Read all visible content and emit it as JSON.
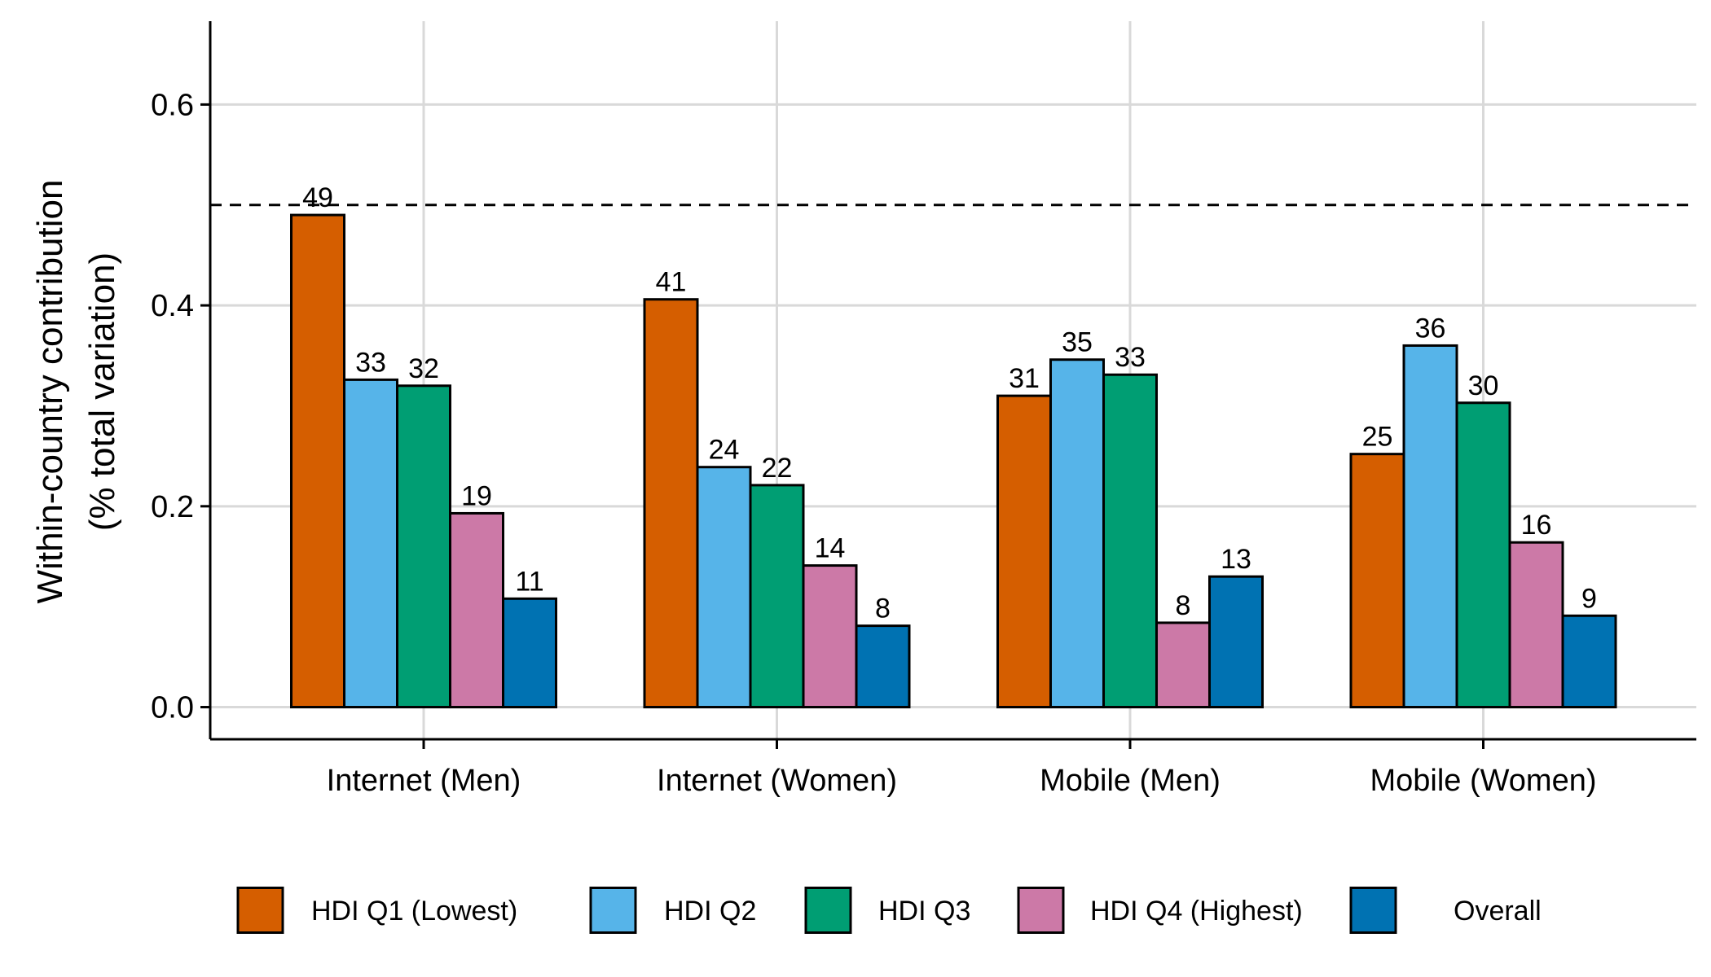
{
  "chart_data": {
    "type": "bar",
    "categories": [
      "Internet (Men)",
      "Internet (Women)",
      "Mobile (Men)",
      "Mobile (Women)"
    ],
    "series": [
      {
        "name": "HDI Q1 (Lowest)",
        "color": "#D55E00",
        "values": [
          0.49,
          0.406,
          0.31,
          0.252
        ],
        "labels": [
          "49",
          "41",
          "31",
          "25"
        ]
      },
      {
        "name": "HDI Q2",
        "color": "#56B4E9",
        "values": [
          0.326,
          0.239,
          0.346,
          0.36
        ],
        "labels": [
          "33",
          "24",
          "35",
          "36"
        ]
      },
      {
        "name": "HDI Q3",
        "color": "#009E73",
        "values": [
          0.32,
          0.221,
          0.331,
          0.303
        ],
        "labels": [
          "32",
          "22",
          "33",
          "30"
        ]
      },
      {
        "name": "HDI Q4 (Highest)",
        "color": "#CC79A7",
        "values": [
          0.193,
          0.141,
          0.084,
          0.164
        ],
        "labels": [
          "19",
          "14",
          "8",
          "16"
        ]
      },
      {
        "name": "Overall",
        "color": "#0072B2",
        "values": [
          0.108,
          0.081,
          0.13,
          0.091
        ],
        "labels": [
          "11",
          "8",
          "13",
          "9"
        ]
      }
    ],
    "title": "",
    "xlabel": "",
    "ylabel_lines": [
      "Within-country contribution",
      "(% total variation)"
    ],
    "ylim": [
      -0.032,
      0.683
    ],
    "yticks": [
      0.0,
      0.2,
      0.4,
      0.6
    ],
    "ytick_labels": [
      "0.0",
      "0.2",
      "0.4",
      "0.6"
    ],
    "reference_line": {
      "value": 0.5,
      "style": "dashed"
    },
    "grid": true,
    "legend_position": "bottom"
  }
}
